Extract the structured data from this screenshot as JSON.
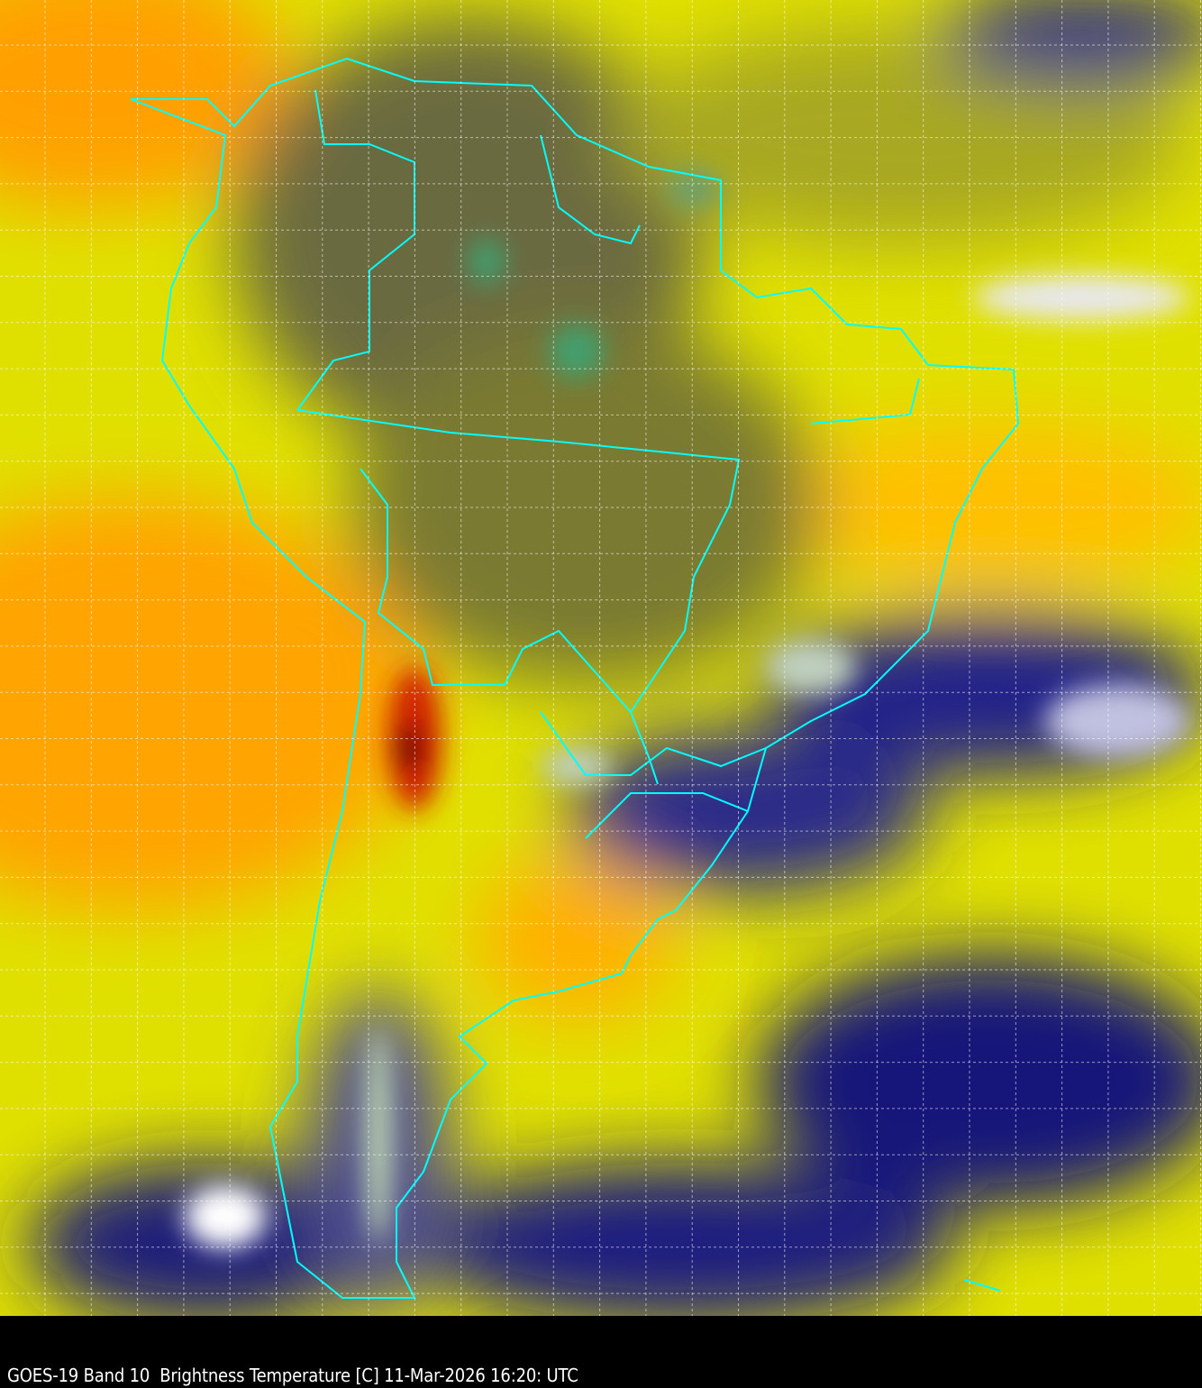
{
  "caption": "GOES-19 Band 10  Brightness Temperature [C] 11-Mar-2026 16:20: UTC",
  "colors": {
    "warm": "#ff9a00",
    "hot": "#ff3000",
    "yellow": "#ffff00",
    "olive": "#8a8a20",
    "navy": "#10107a",
    "cloud": "#f0f0ff",
    "cold": "#3a8a50",
    "borders": "#00ffff",
    "grid": "#ffffff"
  }
}
